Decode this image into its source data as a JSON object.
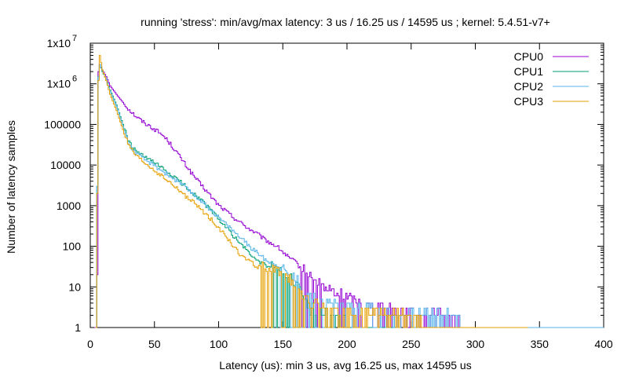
{
  "chart_data": {
    "type": "line",
    "title": "running 'stress': min/avg/max latency: 3 us / 16.25 us / 14595 us ; kernel: 5.4.51-v7+",
    "xlabel": "Latency (us): min 3 us, avg 16.25 us, max 14595 us",
    "ylabel": "Number of latency samples",
    "xlim": [
      0,
      400
    ],
    "ylim": [
      1,
      10000000
    ],
    "y_scale": "log",
    "grid": false,
    "legend_position": "top-right",
    "x_ticks": [
      {
        "value": 0,
        "label": "0"
      },
      {
        "value": 50,
        "label": "50"
      },
      {
        "value": 100,
        "label": "100"
      },
      {
        "value": 150,
        "label": "150"
      },
      {
        "value": 200,
        "label": "200"
      },
      {
        "value": 250,
        "label": "250"
      },
      {
        "value": 300,
        "label": "300"
      },
      {
        "value": 350,
        "label": "350"
      },
      {
        "value": 400,
        "label": "400"
      }
    ],
    "y_ticks": [
      {
        "value": 1,
        "label": "1"
      },
      {
        "value": 10,
        "label": "10"
      },
      {
        "value": 100,
        "label": "100"
      },
      {
        "value": 1000,
        "label": "1000"
      },
      {
        "value": 10000,
        "label": "10000"
      },
      {
        "value": 100000,
        "label": "100000"
      },
      {
        "value": 1000000,
        "label": "1x10",
        "exponent": "6"
      },
      {
        "value": 10000000,
        "label": "1x10",
        "exponent": "7"
      }
    ],
    "series": [
      {
        "name": "CPU0",
        "color": "#9400d3",
        "points": [
          [
            3,
            1
          ],
          [
            4,
            1
          ],
          [
            5,
            20
          ],
          [
            6,
            2000000
          ],
          [
            7,
            3000000
          ],
          [
            9,
            2200000
          ],
          [
            12,
            1500000
          ],
          [
            15,
            900000
          ],
          [
            20,
            550000
          ],
          [
            25,
            350000
          ],
          [
            30,
            230000
          ],
          [
            35,
            160000
          ],
          [
            40,
            120000
          ],
          [
            45,
            95000
          ],
          [
            50,
            75000
          ],
          [
            55,
            58000
          ],
          [
            60,
            40000
          ],
          [
            65,
            25000
          ],
          [
            70,
            15000
          ],
          [
            75,
            9000
          ],
          [
            80,
            5500
          ],
          [
            85,
            3500
          ],
          [
            90,
            2300
          ],
          [
            95,
            1500
          ],
          [
            100,
            1000
          ],
          [
            105,
            750
          ],
          [
            110,
            550
          ],
          [
            115,
            420
          ],
          [
            120,
            320
          ],
          [
            125,
            250
          ],
          [
            130,
            200
          ],
          [
            135,
            150
          ],
          [
            140,
            120
          ],
          [
            145,
            100
          ],
          [
            150,
            70
          ],
          [
            155,
            50
          ],
          [
            160,
            40
          ],
          [
            165,
            25
          ],
          [
            170,
            18
          ],
          [
            175,
            12
          ],
          [
            180,
            10
          ],
          [
            190,
            7
          ],
          [
            200,
            5
          ],
          [
            210,
            4
          ],
          [
            220,
            3
          ],
          [
            230,
            3
          ],
          [
            250,
            2
          ],
          [
            270,
            2
          ],
          [
            290,
            1
          ],
          [
            310,
            1
          ],
          [
            330,
            1
          ],
          [
            350,
            1
          ],
          [
            380,
            1
          ],
          [
            400,
            1
          ]
        ]
      },
      {
        "name": "CPU1",
        "color": "#009e73",
        "points": [
          [
            4,
            1
          ],
          [
            5,
            3000
          ],
          [
            6,
            1500000
          ],
          [
            7,
            3000000
          ],
          [
            9,
            2000000
          ],
          [
            12,
            1300000
          ],
          [
            15,
            700000
          ],
          [
            20,
            300000
          ],
          [
            25,
            100000
          ],
          [
            30,
            35000
          ],
          [
            35,
            22000
          ],
          [
            40,
            17000
          ],
          [
            45,
            14000
          ],
          [
            50,
            11000
          ],
          [
            55,
            8500
          ],
          [
            60,
            6500
          ],
          [
            65,
            5000
          ],
          [
            70,
            3800
          ],
          [
            75,
            2800
          ],
          [
            80,
            2000
          ],
          [
            85,
            1500
          ],
          [
            90,
            1000
          ],
          [
            95,
            700
          ],
          [
            100,
            450
          ],
          [
            105,
            300
          ],
          [
            110,
            200
          ],
          [
            115,
            130
          ],
          [
            120,
            90
          ],
          [
            125,
            60
          ],
          [
            130,
            45
          ],
          [
            135,
            35
          ],
          [
            140,
            30
          ],
          [
            145,
            25
          ],
          [
            150,
            20
          ],
          [
            155,
            15
          ],
          [
            160,
            12
          ],
          [
            165,
            5
          ],
          [
            170,
            3
          ],
          [
            180,
            2
          ],
          [
            190,
            2
          ],
          [
            200,
            1
          ],
          [
            220,
            1
          ],
          [
            240,
            1
          ]
        ]
      },
      {
        "name": "CPU2",
        "color": "#56b4e9",
        "points": [
          [
            4,
            1
          ],
          [
            5,
            3000
          ],
          [
            6,
            1500000
          ],
          [
            7,
            3000000
          ],
          [
            9,
            2100000
          ],
          [
            12,
            1300000
          ],
          [
            15,
            650000
          ],
          [
            20,
            280000
          ],
          [
            25,
            90000
          ],
          [
            30,
            32000
          ],
          [
            35,
            20000
          ],
          [
            40,
            15000
          ],
          [
            45,
            12000
          ],
          [
            50,
            9500
          ],
          [
            55,
            7500
          ],
          [
            60,
            5800
          ],
          [
            65,
            4500
          ],
          [
            70,
            3500
          ],
          [
            75,
            2600
          ],
          [
            80,
            1900
          ],
          [
            85,
            1400
          ],
          [
            90,
            1000
          ],
          [
            95,
            720
          ],
          [
            100,
            500
          ],
          [
            105,
            360
          ],
          [
            110,
            260
          ],
          [
            115,
            180
          ],
          [
            120,
            130
          ],
          [
            125,
            90
          ],
          [
            130,
            70
          ],
          [
            135,
            50
          ],
          [
            140,
            40
          ],
          [
            145,
            35
          ],
          [
            150,
            25
          ],
          [
            155,
            20
          ],
          [
            160,
            15
          ],
          [
            165,
            8
          ],
          [
            170,
            5
          ],
          [
            180,
            4
          ],
          [
            200,
            3
          ],
          [
            220,
            3
          ],
          [
            240,
            2
          ],
          [
            260,
            2
          ],
          [
            280,
            2
          ],
          [
            300,
            1
          ],
          [
            320,
            1
          ],
          [
            340,
            1
          ],
          [
            360,
            1
          ],
          [
            380,
            1
          ],
          [
            400,
            1
          ]
        ]
      },
      {
        "name": "CPU3",
        "color": "#e69f00",
        "points": [
          [
            4,
            1
          ],
          [
            5,
            2000
          ],
          [
            6,
            1200000
          ],
          [
            7,
            5000000
          ],
          [
            9,
            2200000
          ],
          [
            12,
            1200000
          ],
          [
            15,
            550000
          ],
          [
            20,
            220000
          ],
          [
            25,
            75000
          ],
          [
            30,
            28000
          ],
          [
            35,
            17000
          ],
          [
            40,
            12500
          ],
          [
            45,
            9500
          ],
          [
            50,
            7200
          ],
          [
            55,
            5400
          ],
          [
            60,
            4000
          ],
          [
            65,
            3000
          ],
          [
            70,
            2200
          ],
          [
            75,
            1600
          ],
          [
            80,
            1200
          ],
          [
            85,
            850
          ],
          [
            90,
            600
          ],
          [
            95,
            420
          ],
          [
            100,
            280
          ],
          [
            105,
            180
          ],
          [
            110,
            110
          ],
          [
            115,
            70
          ],
          [
            120,
            50
          ],
          [
            125,
            40
          ],
          [
            130,
            30
          ],
          [
            135,
            28
          ],
          [
            140,
            25
          ],
          [
            145,
            22
          ],
          [
            150,
            18
          ],
          [
            155,
            14
          ],
          [
            160,
            8
          ],
          [
            165,
            6
          ],
          [
            170,
            4
          ],
          [
            180,
            3
          ],
          [
            200,
            2
          ],
          [
            220,
            2
          ],
          [
            240,
            2
          ],
          [
            260,
            1
          ],
          [
            280,
            1
          ],
          [
            300,
            1
          ],
          [
            320,
            1
          ],
          [
            340,
            1
          ]
        ]
      }
    ]
  }
}
